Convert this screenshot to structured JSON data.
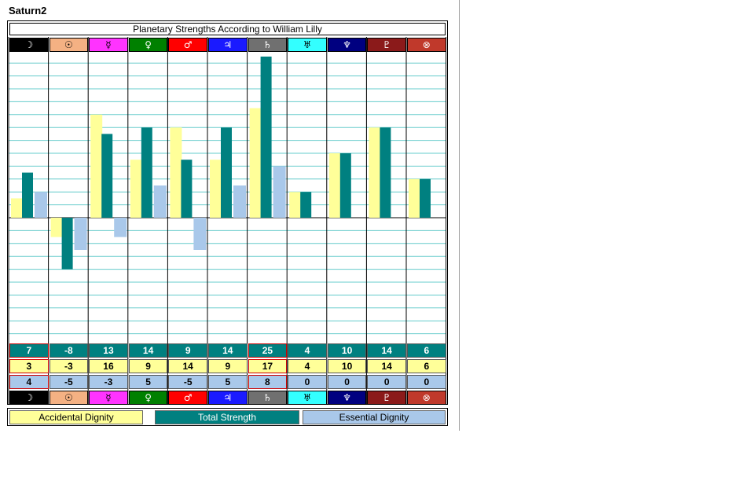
{
  "window": {
    "title": "Saturn2"
  },
  "chart_data": {
    "type": "bar",
    "title": "Planetary Strengths According to William Lilly",
    "categories": [
      "☽",
      "☉",
      "☿",
      "♀",
      "♂",
      "♃",
      "♄",
      "♅",
      "♆",
      "♇",
      "⊗"
    ],
    "category_colors": [
      "#000000",
      "#f4b183",
      "#ff33ff",
      "#008000",
      "#ff0000",
      "#1a1aff",
      "#707070",
      "#33ffff",
      "#000080",
      "#8b1a1a",
      "#c0392b"
    ],
    "glyph_colors": [
      "#ffffff",
      "#000000",
      "#000000",
      "#ffffff",
      "#ffffff",
      "#ffffff",
      "#ffffff",
      "#000000",
      "#ffffff",
      "#ffffff",
      "#ffffff"
    ],
    "series": [
      {
        "name": "Accidental Dignity",
        "color": "#ffff99",
        "values": [
          3,
          -3,
          16,
          9,
          14,
          9,
          17,
          4,
          10,
          14,
          6
        ]
      },
      {
        "name": "Total Strength",
        "color": "#008080",
        "values": [
          7,
          -8,
          13,
          14,
          9,
          14,
          25,
          4,
          10,
          14,
          6
        ]
      },
      {
        "name": "Essential Dignity",
        "color": "#a9c8ea",
        "values": [
          4,
          -5,
          -3,
          5,
          -5,
          5,
          8,
          0,
          0,
          0,
          0
        ]
      }
    ],
    "highlighted": [
      0,
      6
    ],
    "ylim": [
      -20,
      26
    ],
    "grid": true
  }
}
